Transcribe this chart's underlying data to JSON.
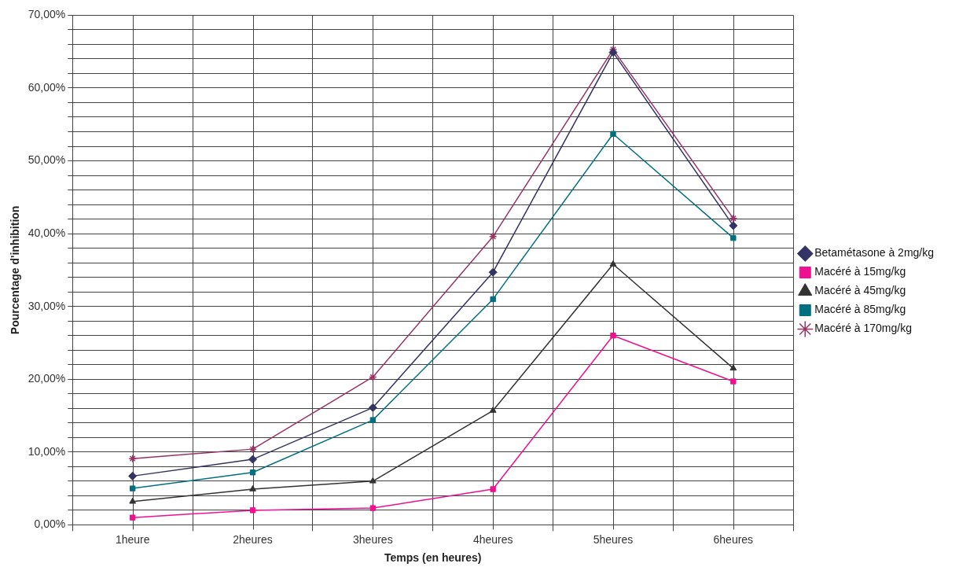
{
  "chart_data": {
    "type": "line",
    "xlabel": "Temps (en heures)",
    "ylabel": "Pourcentage d'inhibition",
    "categories": [
      "1heure",
      "2heures",
      "3heures",
      "4heures",
      "5heures",
      "6heures"
    ],
    "series": [
      {
        "name": "Betamétasone à 2mg/kg",
        "color": "#333366",
        "marker": "diamond",
        "values": [
          6.7,
          9.0,
          16.1,
          34.7,
          64.9,
          41.1
        ]
      },
      {
        "name": "Macéré à 15mg/kg",
        "color": "#ee1190",
        "marker": "square",
        "values": [
          1.0,
          2.0,
          2.3,
          4.9,
          26.0,
          19.7
        ]
      },
      {
        "name": "Macéré à 45mg/kg",
        "color": "#333333",
        "marker": "triangle",
        "values": [
          3.2,
          4.9,
          6.0,
          15.7,
          35.8,
          21.5
        ]
      },
      {
        "name": "Macéré à 85mg/kg",
        "color": "#007080",
        "marker": "square",
        "values": [
          5.0,
          7.2,
          14.4,
          31.0,
          53.7,
          39.4
        ]
      },
      {
        "name": "Macéré à 170mg/kg",
        "color": "#993366",
        "marker": "cross",
        "values": [
          9.1,
          10.4,
          20.3,
          39.6,
          65.3,
          42.1
        ]
      }
    ],
    "ylim": [
      0,
      70
    ],
    "yticks": [
      {
        "value": 0,
        "label": "0,00%"
      },
      {
        "value": 2,
        "label": null
      },
      {
        "value": 4,
        "label": null
      },
      {
        "value": 6,
        "label": null
      },
      {
        "value": 8,
        "label": null
      },
      {
        "value": 10,
        "label": "10,00%"
      },
      {
        "value": 12,
        "label": null
      },
      {
        "value": 14,
        "label": null
      },
      {
        "value": 16,
        "label": null
      },
      {
        "value": 18,
        "label": null
      },
      {
        "value": 20,
        "label": "20,00%"
      },
      {
        "value": 22,
        "label": null
      },
      {
        "value": 24,
        "label": null
      },
      {
        "value": 26,
        "label": null
      },
      {
        "value": 28,
        "label": null
      },
      {
        "value": 30,
        "label": "30,00%"
      },
      {
        "value": 32,
        "label": null
      },
      {
        "value": 34,
        "label": null
      },
      {
        "value": 36,
        "label": null
      },
      {
        "value": 38,
        "label": null
      },
      {
        "value": 40,
        "label": "40,00%"
      },
      {
        "value": 42,
        "label": null
      },
      {
        "value": 44,
        "label": null
      },
      {
        "value": 46,
        "label": null
      },
      {
        "value": 48,
        "label": null
      },
      {
        "value": 50,
        "label": "50,00%"
      },
      {
        "value": 52,
        "label": null
      },
      {
        "value": 54,
        "label": null
      },
      {
        "value": 56,
        "label": null
      },
      {
        "value": 58,
        "label": null
      },
      {
        "value": 60,
        "label": "60,00%"
      },
      {
        "value": 62,
        "label": null
      },
      {
        "value": 64,
        "label": null
      },
      {
        "value": 66,
        "label": null
      },
      {
        "value": 68,
        "label": null
      },
      {
        "value": 70,
        "label": "70,00%"
      }
    ],
    "grid": true,
    "legend": "right",
    "line_style": "solid"
  }
}
